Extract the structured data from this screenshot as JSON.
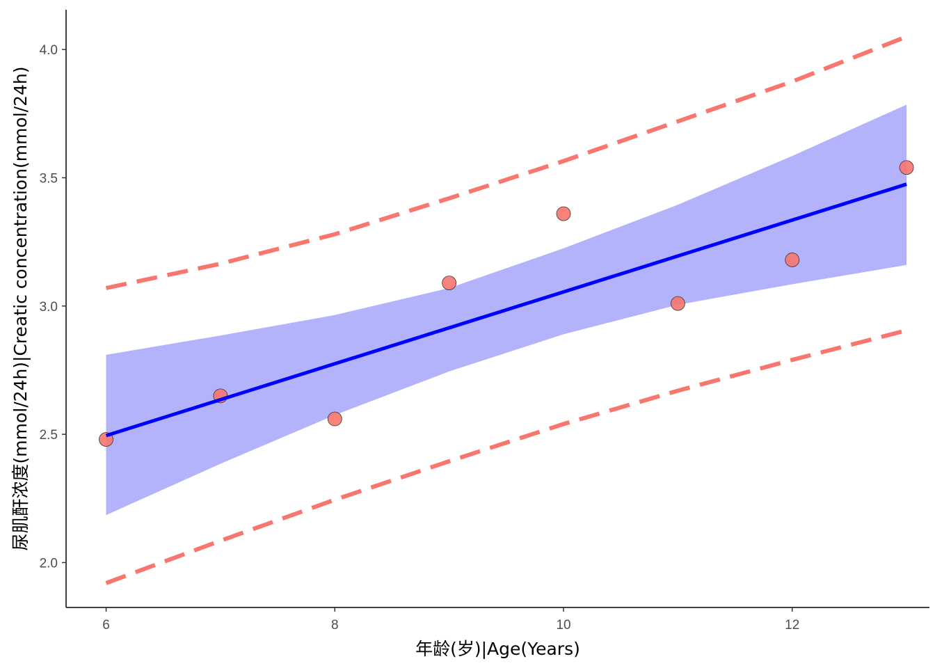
{
  "chart_data": {
    "type": "scatter",
    "title": "",
    "xlabel": "年龄(岁)|Age(Years)",
    "ylabel": "尿肌酐浓度(mmol/24h)|Creatic concentration(mmol/24h)",
    "xlim": [
      5.65,
      13.2
    ],
    "ylim": [
      1.825,
      4.155
    ],
    "x_ticks": [
      6,
      8,
      10,
      12
    ],
    "y_ticks": [
      2.0,
      2.5,
      3.0,
      3.5,
      4.0
    ],
    "y_tick_labels": [
      "2.0",
      "2.5",
      "3.0",
      "3.5",
      "4.0"
    ],
    "points": {
      "name": "observed",
      "x": [
        6,
        7,
        8,
        9,
        10,
        11,
        12,
        13
      ],
      "y": [
        2.48,
        2.65,
        2.56,
        3.09,
        3.36,
        3.01,
        3.18,
        3.54
      ]
    },
    "fit_line": {
      "name": "linear fit",
      "x": [
        6,
        13
      ],
      "y": [
        2.495,
        3.475
      ]
    },
    "confidence_band": {
      "name": "95% confidence interval",
      "x": [
        6,
        7,
        8,
        9,
        10,
        11,
        12,
        13
      ],
      "lower": [
        2.185,
        2.385,
        2.575,
        2.745,
        2.89,
        3.005,
        3.085,
        3.16
      ],
      "upper": [
        2.81,
        2.885,
        2.965,
        3.07,
        3.225,
        3.395,
        3.585,
        3.785
      ]
    },
    "prediction_band": {
      "name": "95% prediction interval",
      "x": [
        6,
        7,
        8,
        9,
        10,
        11,
        12,
        13
      ],
      "lower": [
        1.92,
        2.085,
        2.245,
        2.395,
        2.54,
        2.67,
        2.79,
        2.905
      ],
      "upper": [
        3.07,
        3.165,
        3.28,
        3.42,
        3.565,
        3.72,
        3.875,
        4.05
      ]
    },
    "colors": {
      "points_fill": "#f8766d",
      "points_stroke": "#333333",
      "fit_line": "#0000ff",
      "confidence_band": "#b3b3fb",
      "prediction_line": "#f8766d",
      "axis": "#000000"
    },
    "grid": false,
    "legend": "none"
  }
}
